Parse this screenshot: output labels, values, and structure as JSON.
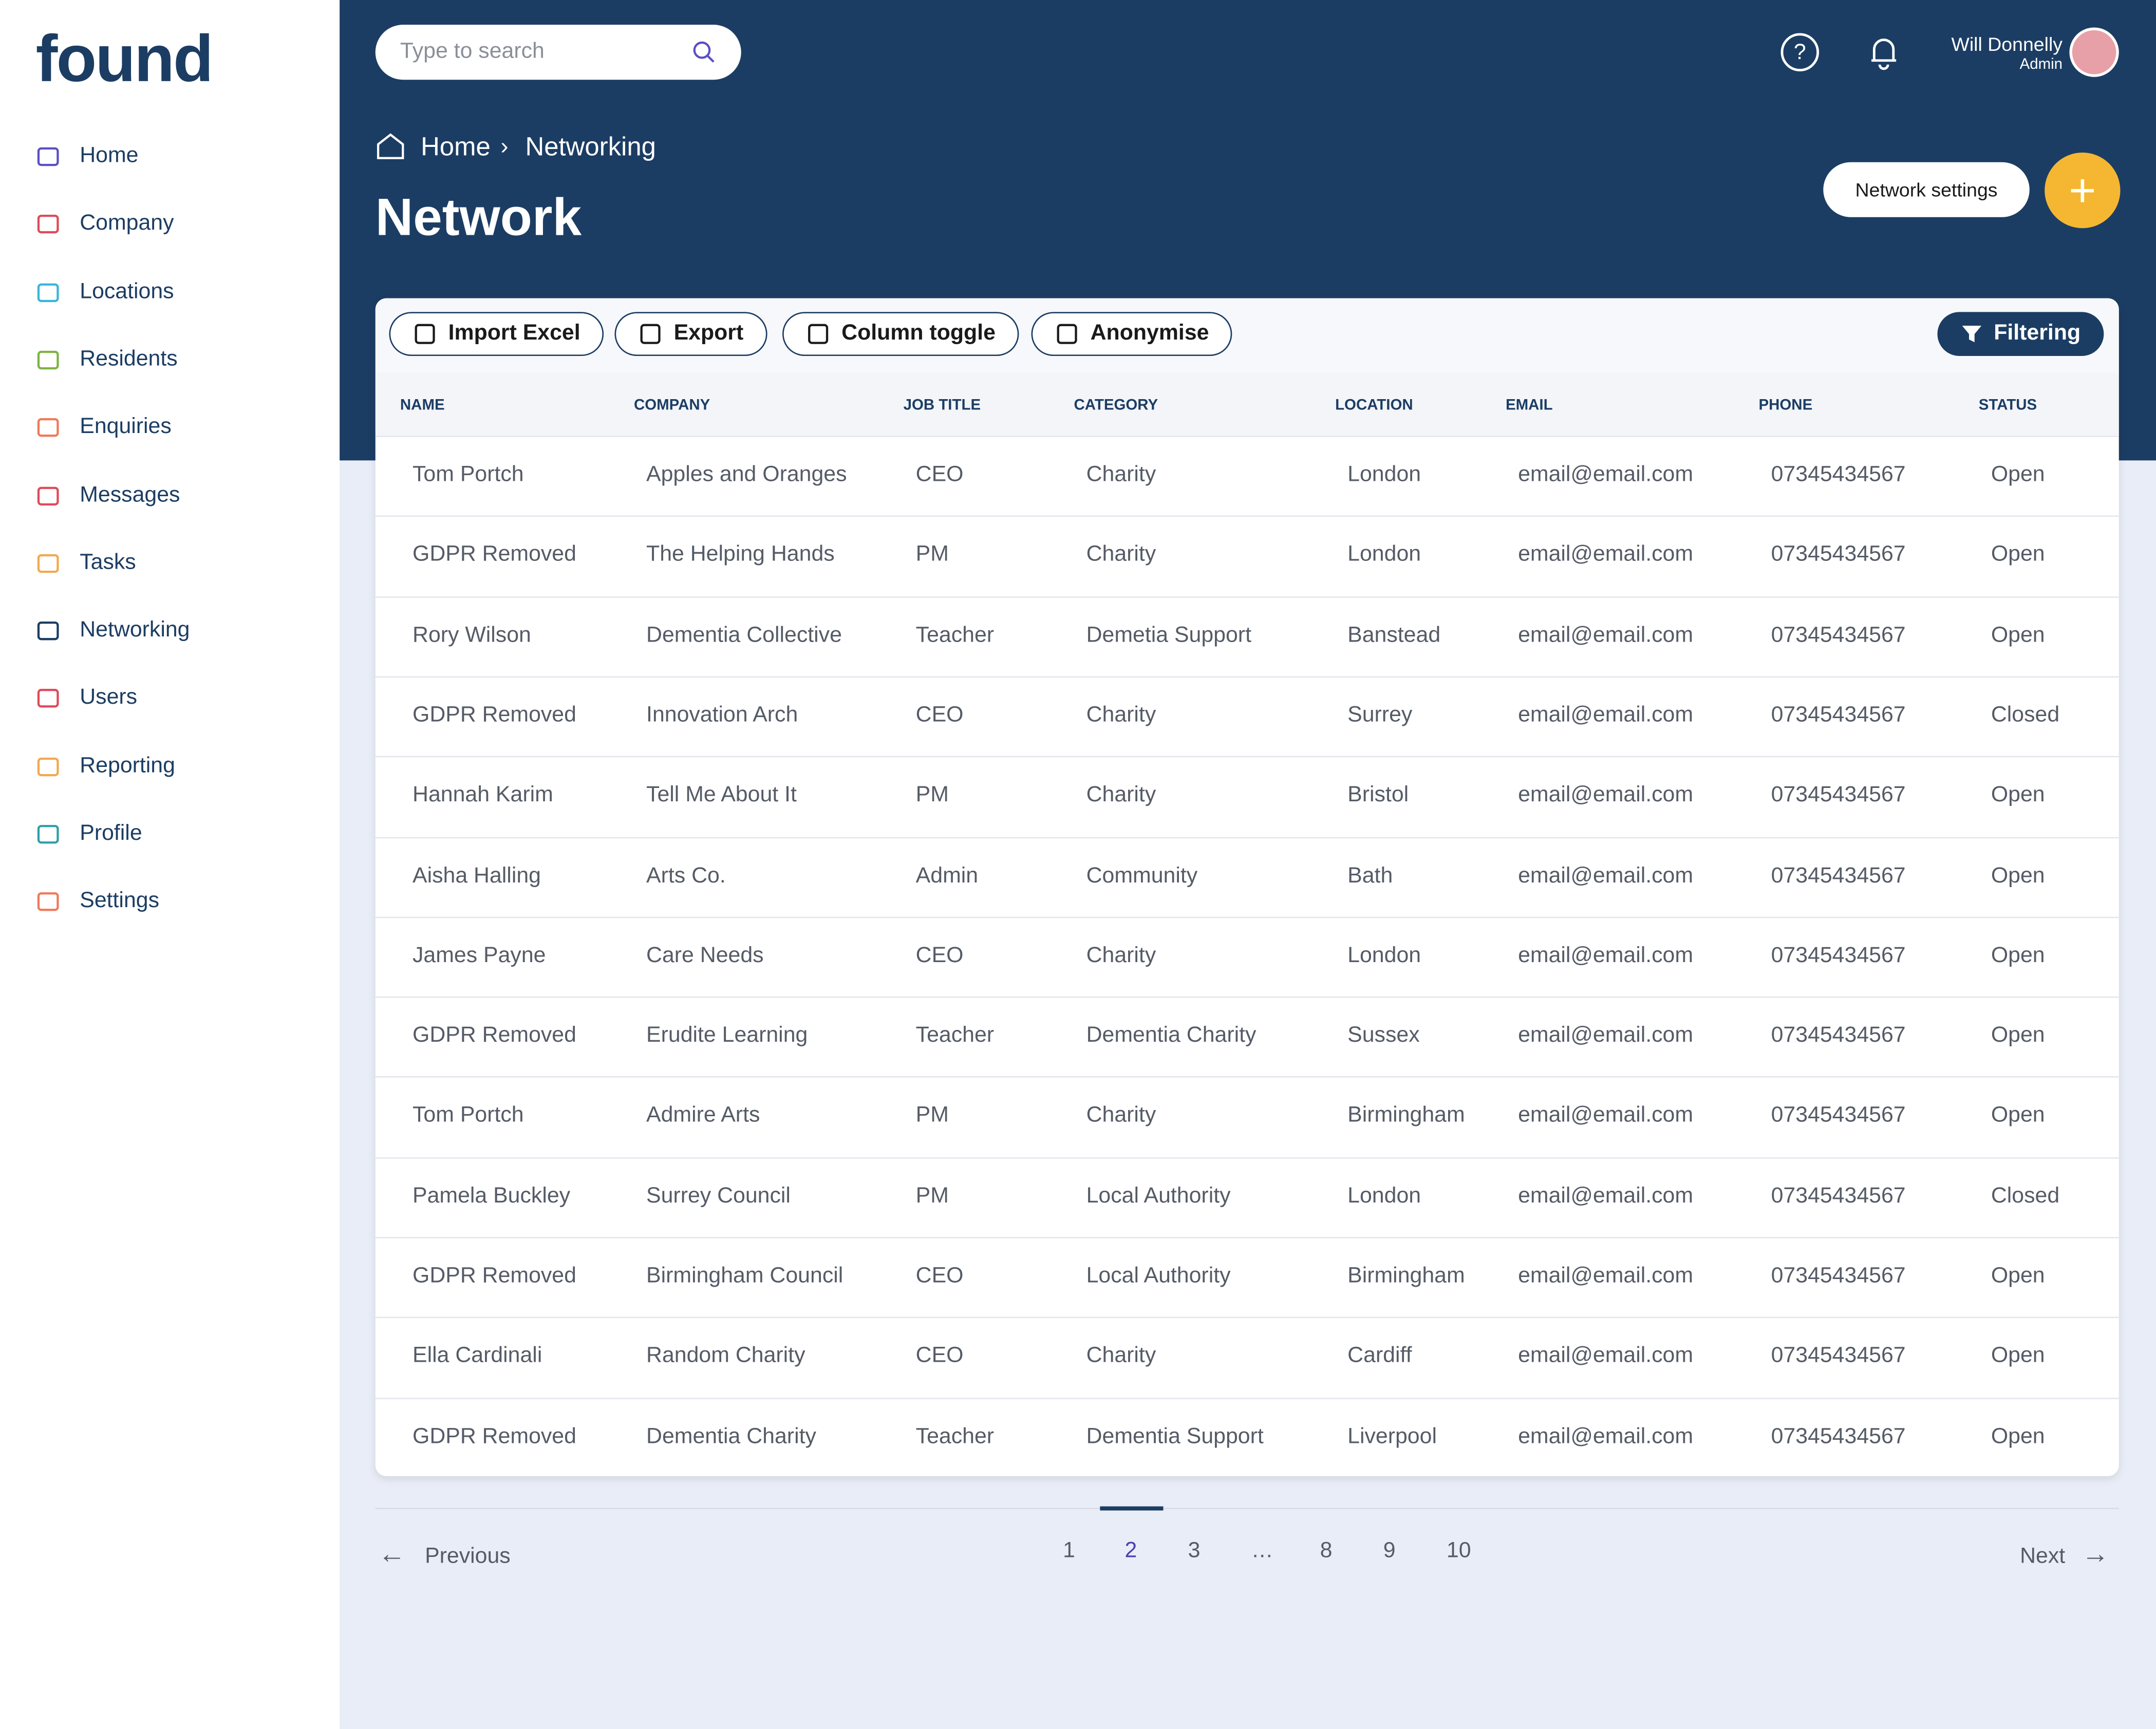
{
  "brand": "found",
  "search": {
    "placeholder": "Type to search"
  },
  "nav": [
    "Home",
    "Company",
    "Locations",
    "Residents",
    "Enquiries",
    "Messages",
    "Tasks",
    "Networking",
    "Users",
    "Reporting",
    "Profile",
    "Settings"
  ],
  "user": {
    "name": "Will Donnelly",
    "role": "Admin"
  },
  "breadcrumb": [
    "Home",
    "Networking"
  ],
  "page_title": "Network",
  "actions": {
    "settings": "Network settings"
  },
  "toolbar": [
    "Import Excel",
    "Export",
    "Column toggle",
    "Anonymise"
  ],
  "filter": "Filtering",
  "table": {
    "headers": [
      "NAME",
      "COMPANY",
      "JOB TITLE",
      "CATEGORY",
      "LOCATION",
      "EMAIL",
      "PHONE",
      "STATUS"
    ],
    "rows": [
      [
        "Tom Portch",
        "Apples and Oranges",
        "CEO",
        "Charity",
        "London",
        "email@email.com",
        "07345434567",
        "Open"
      ],
      [
        "GDPR Removed",
        "The Helping Hands",
        "PM",
        "Charity",
        "London",
        "email@email.com",
        "07345434567",
        "Open"
      ],
      [
        "Rory Wilson",
        "Dementia Collective",
        "Teacher",
        "Demetia Support",
        "Banstead",
        "email@email.com",
        "07345434567",
        "Open"
      ],
      [
        "GDPR Removed",
        "Innovation Arch",
        "CEO",
        "Charity",
        "Surrey",
        "email@email.com",
        "07345434567",
        "Closed"
      ],
      [
        "Hannah Karim",
        "Tell Me About It",
        "PM",
        "Charity",
        "Bristol",
        "email@email.com",
        "07345434567",
        "Open"
      ],
      [
        "Aisha Halling",
        "Arts Co.",
        "Admin",
        "Community",
        "Bath",
        "email@email.com",
        "07345434567",
        "Open"
      ],
      [
        "James Payne",
        "Care Needs",
        "CEO",
        "Charity",
        "London",
        "email@email.com",
        "07345434567",
        "Open"
      ],
      [
        "GDPR Removed",
        "Erudite Learning",
        "Teacher",
        "Dementia Charity",
        "Sussex",
        "email@email.com",
        "07345434567",
        "Open"
      ],
      [
        "Tom Portch",
        "Admire Arts",
        "PM",
        "Charity",
        "Birmingham",
        "email@email.com",
        "07345434567",
        "Open"
      ],
      [
        "Pamela Buckley",
        "Surrey Council",
        "PM",
        "Local Authority",
        "London",
        "email@email.com",
        "07345434567",
        "Closed"
      ],
      [
        "GDPR Removed",
        "Birmingham Council",
        "CEO",
        "Local Authority",
        "Birmingham",
        "email@email.com",
        "07345434567",
        "Open"
      ],
      [
        "Ella Cardinali",
        "Random Charity",
        "CEO",
        "Charity",
        "Cardiff",
        "email@email.com",
        "07345434567",
        "Open"
      ],
      [
        "GDPR Removed",
        "Dementia Charity",
        "Teacher",
        "Dementia Support",
        "Liverpool",
        "email@email.com",
        "07345434567",
        "Open"
      ]
    ]
  },
  "pagination": {
    "previous": "Previous",
    "pages": [
      "1",
      "2",
      "3",
      "…",
      "8",
      "9",
      "10"
    ],
    "next": "Next"
  }
}
